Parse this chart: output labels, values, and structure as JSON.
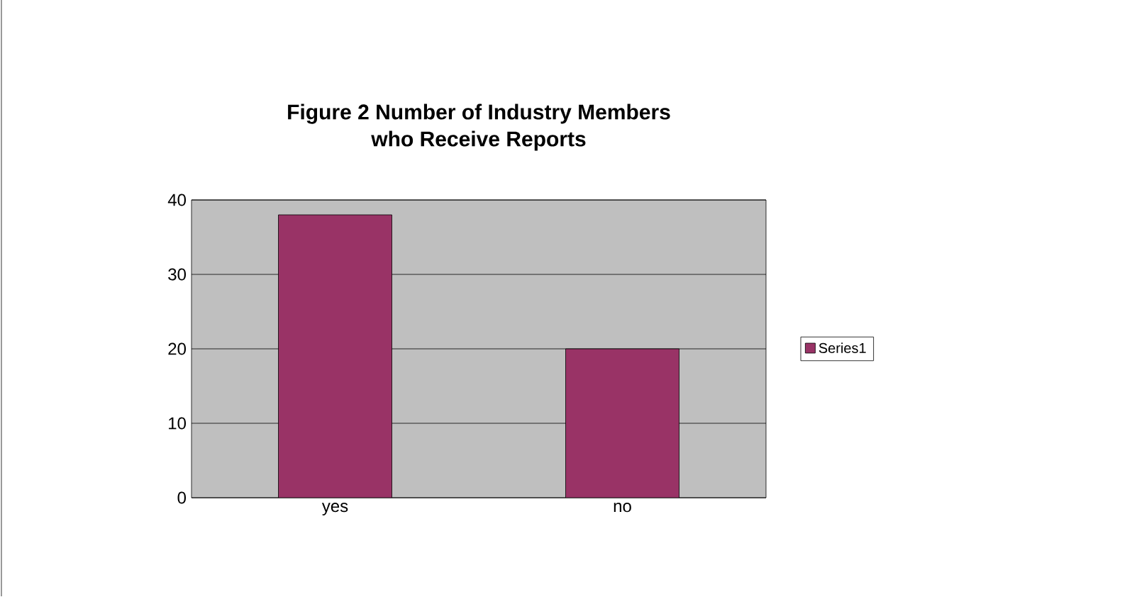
{
  "chart_data": {
    "type": "bar",
    "title": "Figure 2 Number of Industry Members who Receive Reports",
    "categories": [
      "yes",
      "no"
    ],
    "series": [
      {
        "name": "Series1",
        "color": "#993366",
        "values": [
          38,
          20
        ]
      }
    ],
    "ylim": [
      0,
      40
    ],
    "yticks": [
      0,
      10,
      20,
      30,
      40
    ],
    "grid": "y",
    "legend": "right"
  }
}
